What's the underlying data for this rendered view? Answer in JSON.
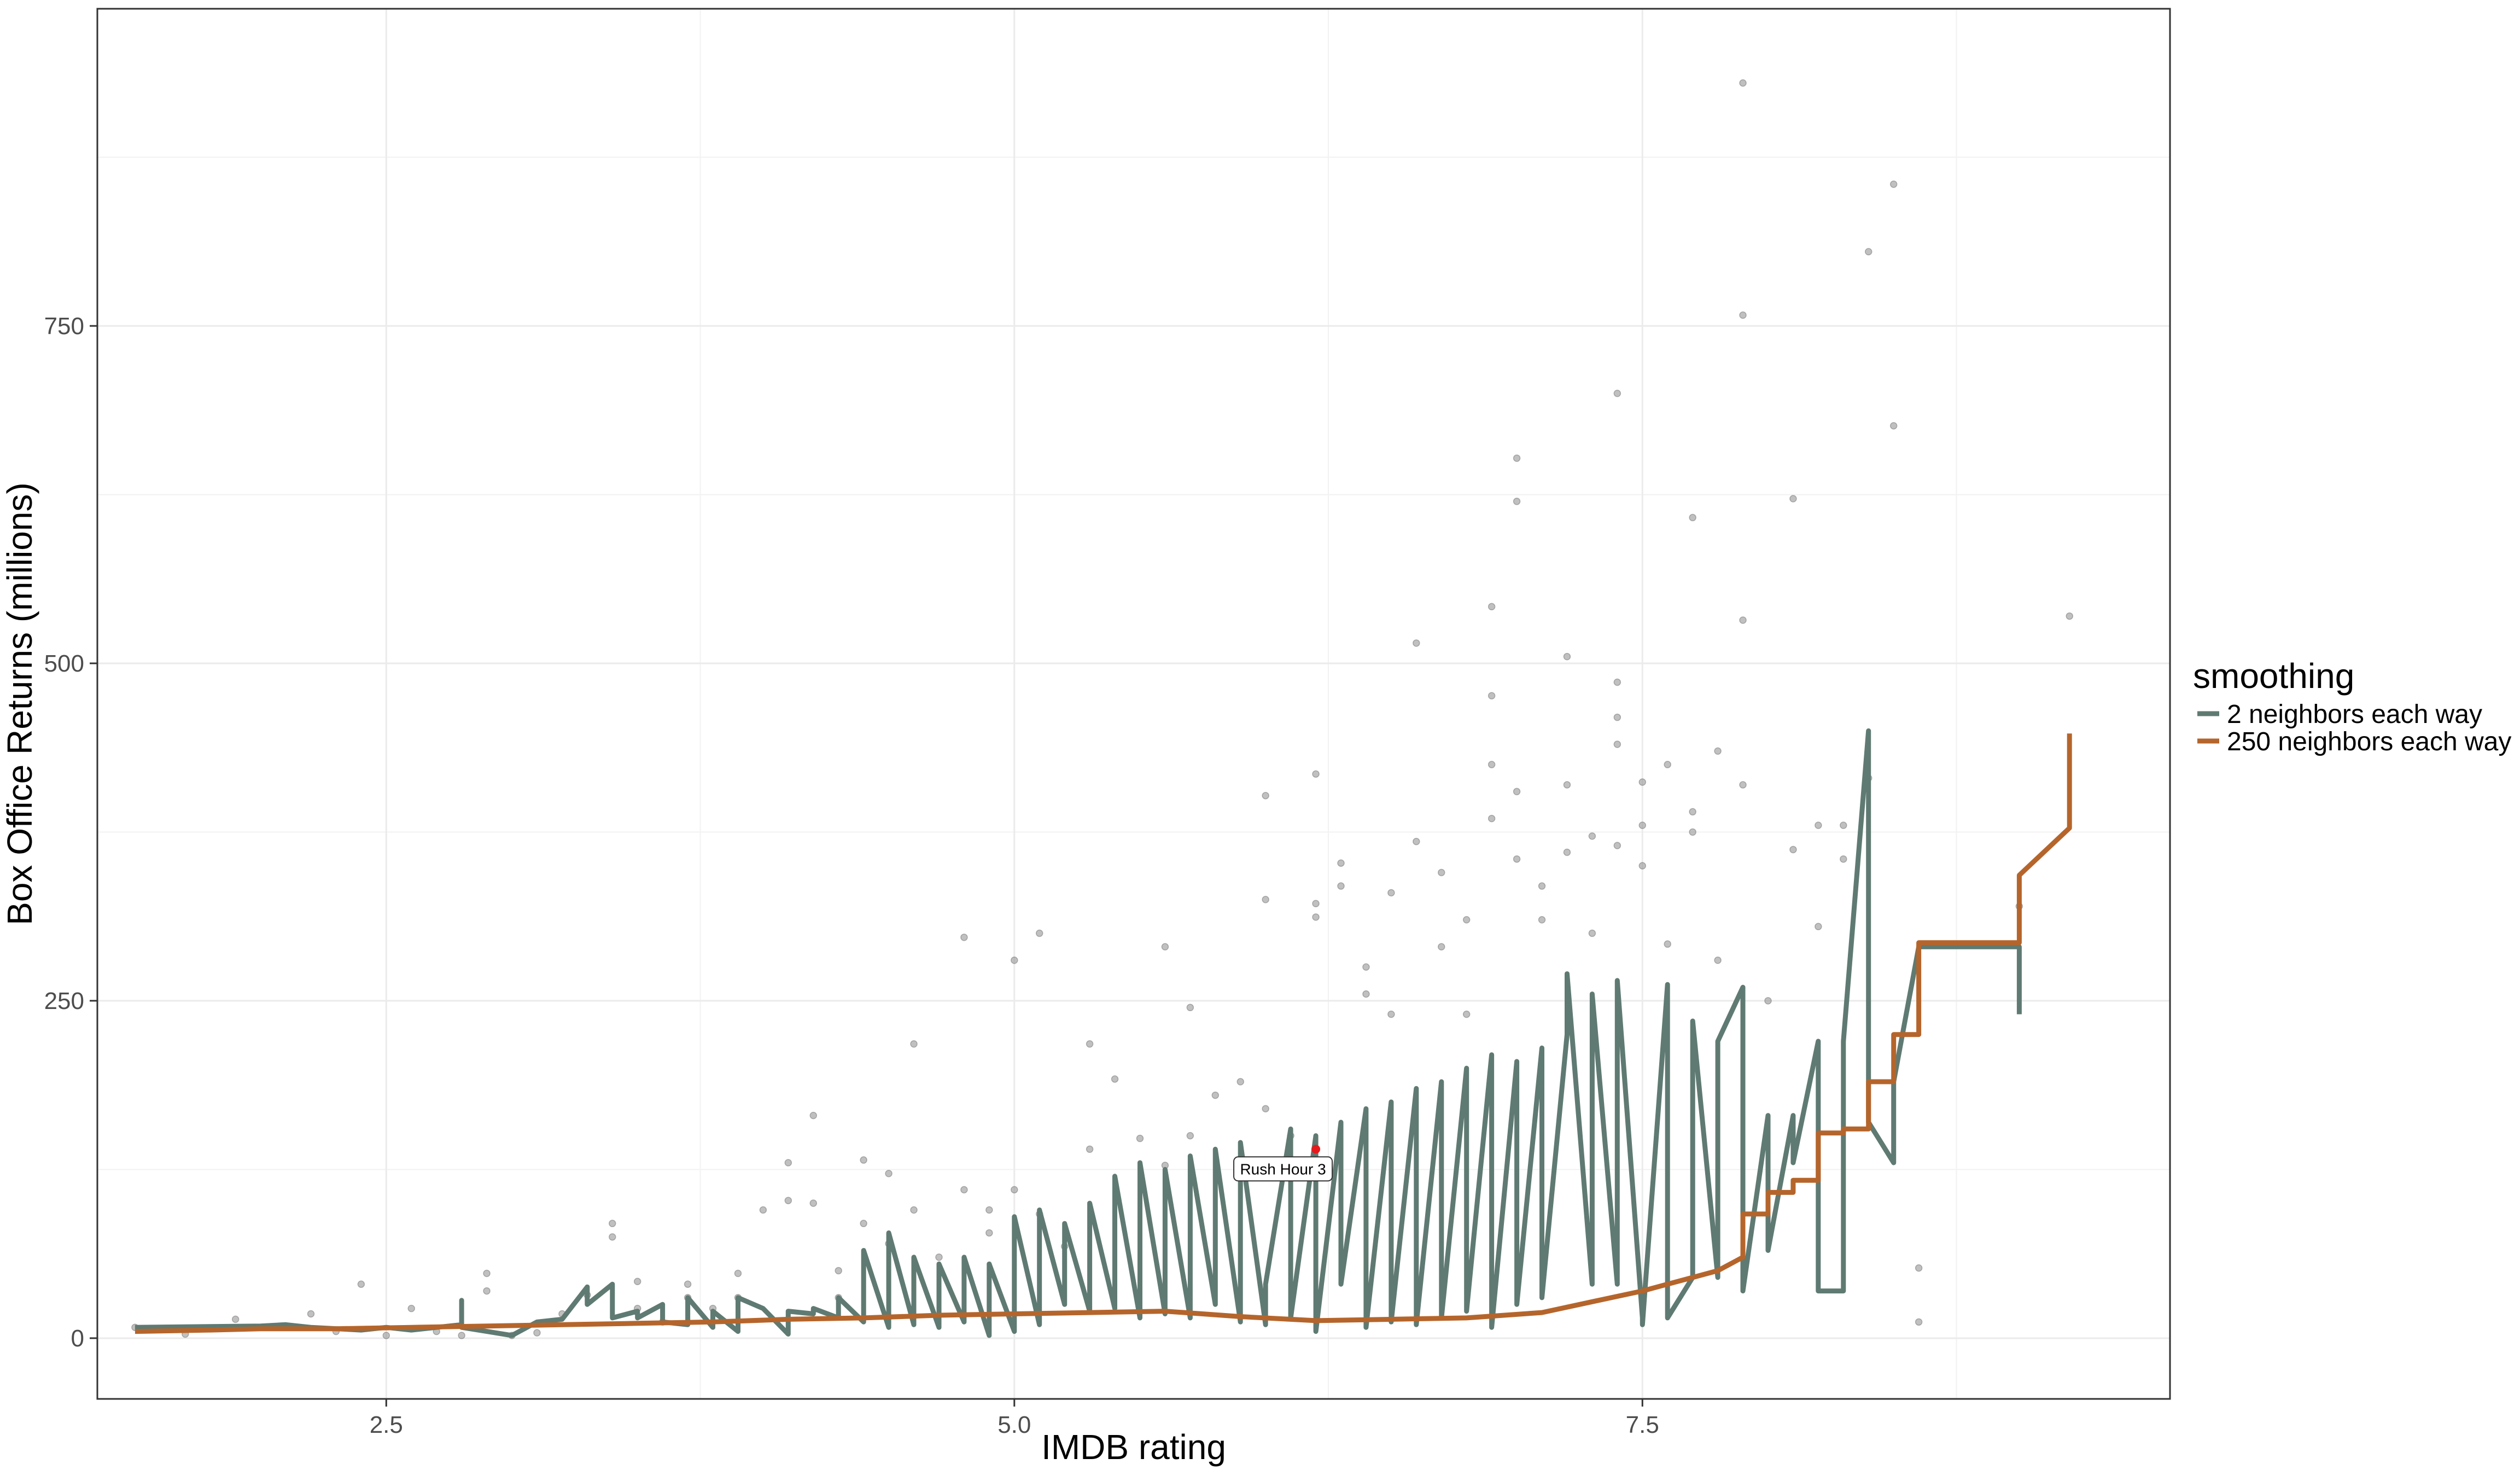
{
  "chart_data": {
    "type": "scatter",
    "xlabel": "IMDB rating",
    "ylabel": "Box Office Returns (millions)",
    "xlim": [
      1.35,
      9.6
    ],
    "ylim": [
      -45,
      985
    ],
    "x_ticks": [
      2.5,
      5.0,
      7.5
    ],
    "x_tick_labels": [
      "2.5",
      "5.0",
      "7.5"
    ],
    "y_ticks": [
      0,
      250,
      500,
      750
    ],
    "y_tick_labels": [
      "0",
      "250",
      "500",
      "750"
    ],
    "grid": true,
    "legend": {
      "title": "smoothing",
      "placement": "right",
      "entries": [
        {
          "label": "2 neighbors each way",
          "color": "#5f7a72"
        },
        {
          "label": "250 neighbors each way",
          "color": "#b5652b"
        }
      ]
    },
    "point_color": "#8c8c8c",
    "highlight": {
      "label": "Rush Hour 3",
      "x": 6.2,
      "y": 140,
      "color": "#e41a1c"
    },
    "points": [
      [
        1.5,
        8
      ],
      [
        1.7,
        3
      ],
      [
        1.9,
        14
      ],
      [
        2.1,
        9
      ],
      [
        2.2,
        18
      ],
      [
        2.3,
        5
      ],
      [
        2.4,
        40
      ],
      [
        2.5,
        2
      ],
      [
        2.6,
        22
      ],
      [
        2.7,
        5
      ],
      [
        2.8,
        2
      ],
      [
        2.9,
        48
      ],
      [
        2.9,
        35
      ],
      [
        3.0,
        2
      ],
      [
        3.1,
        4
      ],
      [
        3.2,
        18
      ],
      [
        3.3,
        32
      ],
      [
        3.4,
        85
      ],
      [
        3.4,
        75
      ],
      [
        3.5,
        22
      ],
      [
        3.5,
        42
      ],
      [
        3.6,
        12
      ],
      [
        3.7,
        40
      ],
      [
        3.7,
        30
      ],
      [
        3.8,
        22
      ],
      [
        3.9,
        48
      ],
      [
        3.9,
        30
      ],
      [
        4.0,
        95
      ],
      [
        4.1,
        130
      ],
      [
        4.1,
        102
      ],
      [
        4.2,
        165
      ],
      [
        4.2,
        100
      ],
      [
        4.3,
        50
      ],
      [
        4.3,
        30
      ],
      [
        4.4,
        132
      ],
      [
        4.4,
        85
      ],
      [
        4.5,
        122
      ],
      [
        4.5,
        70
      ],
      [
        4.6,
        218
      ],
      [
        4.6,
        95
      ],
      [
        4.7,
        60
      ],
      [
        4.8,
        297
      ],
      [
        4.8,
        110
      ],
      [
        4.9,
        95
      ],
      [
        4.9,
        78
      ],
      [
        5.0,
        280
      ],
      [
        5.0,
        110
      ],
      [
        5.1,
        300
      ],
      [
        5.1,
        92
      ],
      [
        5.2,
        68
      ],
      [
        5.3,
        218
      ],
      [
        5.3,
        140
      ],
      [
        5.4,
        192
      ],
      [
        5.5,
        148
      ],
      [
        5.6,
        290
      ],
      [
        5.6,
        128
      ],
      [
        5.7,
        245
      ],
      [
        5.7,
        150
      ],
      [
        5.8,
        180
      ],
      [
        5.9,
        128
      ],
      [
        5.9,
        190
      ],
      [
        6.0,
        402
      ],
      [
        6.0,
        325
      ],
      [
        6.0,
        170
      ],
      [
        6.1,
        150
      ],
      [
        6.2,
        418
      ],
      [
        6.2,
        322
      ],
      [
        6.2,
        312
      ],
      [
        6.3,
        352
      ],
      [
        6.3,
        335
      ],
      [
        6.4,
        275
      ],
      [
        6.4,
        255
      ],
      [
        6.5,
        330
      ],
      [
        6.5,
        240
      ],
      [
        6.6,
        515
      ],
      [
        6.6,
        368
      ],
      [
        6.7,
        345
      ],
      [
        6.7,
        290
      ],
      [
        6.8,
        310
      ],
      [
        6.8,
        240
      ],
      [
        6.9,
        542
      ],
      [
        6.9,
        476
      ],
      [
        6.9,
        425
      ],
      [
        6.9,
        385
      ],
      [
        7.0,
        652
      ],
      [
        7.0,
        620
      ],
      [
        7.0,
        405
      ],
      [
        7.0,
        355
      ],
      [
        7.1,
        335
      ],
      [
        7.1,
        310
      ],
      [
        7.2,
        505
      ],
      [
        7.2,
        410
      ],
      [
        7.2,
        360
      ],
      [
        7.3,
        372
      ],
      [
        7.3,
        300
      ],
      [
        7.4,
        700
      ],
      [
        7.4,
        486
      ],
      [
        7.4,
        460
      ],
      [
        7.4,
        440
      ],
      [
        7.4,
        365
      ],
      [
        7.5,
        412
      ],
      [
        7.5,
        380
      ],
      [
        7.5,
        350
      ],
      [
        7.6,
        425
      ],
      [
        7.6,
        292
      ],
      [
        7.7,
        608
      ],
      [
        7.7,
        390
      ],
      [
        7.7,
        375
      ],
      [
        7.8,
        435
      ],
      [
        7.8,
        280
      ],
      [
        7.9,
        930
      ],
      [
        7.9,
        758
      ],
      [
        7.9,
        532
      ],
      [
        7.9,
        410
      ],
      [
        8.0,
        250
      ],
      [
        8.1,
        622
      ],
      [
        8.1,
        362
      ],
      [
        8.2,
        380
      ],
      [
        8.2,
        305
      ],
      [
        8.3,
        380
      ],
      [
        8.3,
        355
      ],
      [
        8.4,
        805
      ],
      [
        8.4,
        415
      ],
      [
        8.5,
        855
      ],
      [
        8.5,
        676
      ],
      [
        8.6,
        52
      ],
      [
        8.6,
        12
      ],
      [
        9.0,
        320
      ],
      [
        9.2,
        535
      ]
    ],
    "series": [
      {
        "name": "2 neighbors each way",
        "color": "#5f7a72",
        "x": [
          1.5,
          2.0,
          2.1,
          2.2,
          2.4,
          2.5,
          2.6,
          2.7,
          2.8,
          2.8,
          2.8,
          2.9,
          3.0,
          3.1,
          3.2,
          3.3,
          3.3,
          3.3,
          3.4,
          3.4,
          3.5,
          3.5,
          3.6,
          3.6,
          3.7,
          3.7,
          3.8,
          3.8,
          3.9,
          3.9,
          4.0,
          4.1,
          4.1,
          4.2,
          4.2,
          4.3,
          4.3,
          4.4,
          4.4,
          4.5,
          4.5,
          4.6,
          4.6,
          4.7,
          4.7,
          4.8,
          4.8,
          4.9,
          4.9,
          5.0,
          5.0,
          5.1,
          5.1,
          5.2,
          5.2,
          5.3,
          5.3,
          5.4,
          5.4,
          5.5,
          5.5,
          5.6,
          5.6,
          5.7,
          5.7,
          5.8,
          5.8,
          5.9,
          5.9,
          6.0,
          6.0,
          6.0,
          6.1,
          6.1,
          6.2,
          6.2,
          6.3,
          6.3,
          6.4,
          6.4,
          6.5,
          6.5,
          6.6,
          6.6,
          6.7,
          6.7,
          6.8,
          6.8,
          6.9,
          6.9,
          7.0,
          7.0,
          7.1,
          7.1,
          7.2,
          7.2,
          7.3,
          7.3,
          7.4,
          7.4,
          7.5,
          7.5,
          7.6,
          7.6,
          7.7,
          7.7,
          7.8,
          7.8,
          7.9,
          7.9,
          8.0,
          8.0,
          8.1,
          8.1,
          8.2,
          8.2,
          8.3,
          8.3,
          8.4,
          8.4,
          8.5,
          8.5,
          8.6,
          9.0,
          9.0
        ],
        "y": [
          8,
          9,
          10,
          8,
          6,
          8,
          6,
          8,
          10,
          28,
          8,
          5,
          2,
          12,
          14,
          38,
          30,
          25,
          40,
          15,
          20,
          15,
          25,
          12,
          10,
          30,
          8,
          20,
          5,
          30,
          22,
          3,
          20,
          18,
          22,
          15,
          30,
          12,
          65,
          8,
          78,
          10,
          60,
          8,
          55,
          12,
          60,
          2,
          55,
          5,
          90,
          10,
          95,
          25,
          85,
          20,
          100,
          22,
          120,
          15,
          130,
          18,
          125,
          15,
          135,
          25,
          140,
          12,
          145,
          10,
          30,
          40,
          155,
          15,
          150,
          5,
          160,
          40,
          170,
          8,
          175,
          12,
          185,
          10,
          190,
          15,
          200,
          20,
          210,
          8,
          205,
          25,
          215,
          30,
          225,
          270,
          40,
          255,
          40,
          265,
          15,
          10,
          262,
          15,
          45,
          235,
          45,
          220,
          260,
          35,
          165,
          65,
          165,
          130,
          220,
          35,
          35,
          220,
          450,
          160,
          130,
          190,
          290,
          290,
          240
        ],
        "_note": "values"
      },
      {
        "name": "250 neighbors each way",
        "color": "#b5652b",
        "x": [
          1.5,
          1.8,
          2.0,
          2.3,
          2.6,
          2.9,
          3.2,
          3.5,
          3.8,
          4.1,
          4.4,
          4.7,
          5.0,
          5.3,
          5.6,
          5.9,
          6.2,
          6.5,
          6.8,
          7.1,
          7.3,
          7.5,
          7.6,
          7.7,
          7.8,
          7.9,
          7.9,
          8.0,
          8.0,
          8.1,
          8.1,
          8.2,
          8.2,
          8.3,
          8.3,
          8.4,
          8.4,
          8.5,
          8.5,
          8.6,
          8.6,
          9.0,
          9.0,
          9.2,
          9.2
        ],
        "y": [
          5,
          6,
          7,
          7,
          8,
          9,
          10,
          11,
          12,
          14,
          15,
          17,
          18,
          19,
          20,
          16,
          13,
          14,
          15,
          19,
          27,
          35,
          40,
          45,
          50,
          60,
          92,
          92,
          108,
          108,
          117,
          117,
          152,
          152,
          155,
          155,
          190,
          190,
          225,
          225,
          293,
          293,
          343,
          378,
          448
        ]
      }
    ]
  }
}
